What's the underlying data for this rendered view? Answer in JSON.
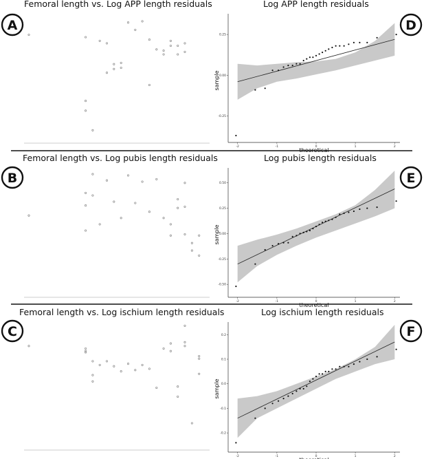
{
  "chart_data": [
    {
      "type": "scatter",
      "panel": "A",
      "title": "Femoral length vs. Log APP length residuals",
      "xlabel": "",
      "ylabel": "",
      "points": [
        [
          0,
          84
        ],
        [
          8,
          82
        ],
        [
          8,
          30
        ],
        [
          8,
          22
        ],
        [
          9,
          6
        ],
        [
          10,
          79
        ],
        [
          11,
          77
        ],
        [
          11,
          53
        ],
        [
          12,
          60
        ],
        [
          12,
          56
        ],
        [
          13,
          61
        ],
        [
          13,
          57
        ],
        [
          14,
          94
        ],
        [
          15,
          88
        ],
        [
          16,
          95
        ],
        [
          17,
          43
        ],
        [
          17,
          80
        ],
        [
          18,
          72
        ],
        [
          19,
          68
        ],
        [
          19,
          71
        ],
        [
          20,
          79
        ],
        [
          20,
          75
        ],
        [
          21,
          75
        ],
        [
          21,
          68
        ],
        [
          22,
          77
        ],
        [
          22,
          70
        ]
      ],
      "ylim": [
        0,
        100
      ]
    },
    {
      "type": "scatter",
      "panel": "B",
      "title": "Femoral length vs. Log pubis length residuals",
      "xlabel": "",
      "ylabel": "",
      "points": [
        [
          0,
          62
        ],
        [
          8,
          80
        ],
        [
          8,
          70
        ],
        [
          8,
          50
        ],
        [
          9,
          95
        ],
        [
          9,
          78
        ],
        [
          10,
          55
        ],
        [
          11,
          90
        ],
        [
          12,
          73
        ],
        [
          13,
          60
        ],
        [
          14,
          94
        ],
        [
          15,
          72
        ],
        [
          16,
          89
        ],
        [
          17,
          65
        ],
        [
          18,
          91
        ],
        [
          19,
          60
        ],
        [
          20,
          46
        ],
        [
          20,
          55
        ],
        [
          21,
          75
        ],
        [
          21,
          68
        ],
        [
          22,
          47
        ],
        [
          22,
          88
        ],
        [
          22,
          69
        ],
        [
          23,
          40
        ],
        [
          23,
          34
        ],
        [
          24,
          30
        ],
        [
          24,
          46
        ]
      ],
      "ylim": [
        0,
        100
      ]
    },
    {
      "type": "scatter",
      "panel": "C",
      "title": "Femoral length vs. Log ischium length residuals",
      "xlabel": "",
      "ylabel": "",
      "points": [
        [
          0,
          80
        ],
        [
          8,
          76
        ],
        [
          8,
          75
        ],
        [
          8,
          78
        ],
        [
          9,
          68
        ],
        [
          9,
          57
        ],
        [
          9,
          52
        ],
        [
          10,
          65
        ],
        [
          11,
          68
        ],
        [
          12,
          64
        ],
        [
          13,
          60
        ],
        [
          14,
          66
        ],
        [
          15,
          61
        ],
        [
          16,
          65
        ],
        [
          17,
          62
        ],
        [
          18,
          47
        ],
        [
          19,
          78
        ],
        [
          20,
          82
        ],
        [
          20,
          76
        ],
        [
          21,
          40
        ],
        [
          21,
          48
        ],
        [
          22,
          80
        ],
        [
          22,
          83
        ],
        [
          22,
          96
        ],
        [
          23,
          19
        ],
        [
          24,
          72
        ],
        [
          24,
          58
        ],
        [
          24,
          70
        ]
      ],
      "ylim": [
        0,
        100
      ]
    },
    {
      "type": "scatter",
      "panel": "D",
      "title": "Log APP length residuals",
      "xlabel": "theoretical",
      "ylabel": "sample",
      "x_ticks": [
        "-2",
        "-1",
        "0",
        "1",
        "2"
      ],
      "y_ticks": [
        "-0.25",
        "0.00",
        "0.25"
      ],
      "xlim": [
        -2.1,
        2.1
      ],
      "ylim": [
        -0.37,
        0.36
      ],
      "fit_line": [
        [
          -2.0,
          -0.04
        ],
        [
          2.0,
          0.22
        ]
      ],
      "ci_band": {
        "x": [
          -2.0,
          -1.5,
          -1.0,
          -0.5,
          0,
          0.5,
          1.0,
          1.5,
          2.0
        ],
        "lower": [
          -0.15,
          -0.08,
          -0.04,
          -0.02,
          0.005,
          0.03,
          0.06,
          0.09,
          0.12
        ],
        "upper": [
          0.07,
          0.06,
          0.07,
          0.08,
          0.085,
          0.1,
          0.14,
          0.21,
          0.32
        ]
      },
      "points": [
        [
          -2.04,
          -0.37
        ],
        [
          -1.55,
          -0.09
        ],
        [
          -1.3,
          -0.08
        ],
        [
          -1.11,
          0.03
        ],
        [
          -0.96,
          0.03
        ],
        [
          -0.83,
          0.05
        ],
        [
          -0.71,
          0.06
        ],
        [
          -0.6,
          0.06
        ],
        [
          -0.5,
          0.07
        ],
        [
          -0.41,
          0.07
        ],
        [
          -0.32,
          0.09
        ],
        [
          -0.24,
          0.1
        ],
        [
          -0.16,
          0.11
        ],
        [
          -0.08,
          0.11
        ],
        [
          0.0,
          0.12
        ],
        [
          0.08,
          0.13
        ],
        [
          0.16,
          0.14
        ],
        [
          0.24,
          0.15
        ],
        [
          0.32,
          0.16
        ],
        [
          0.41,
          0.17
        ],
        [
          0.5,
          0.18
        ],
        [
          0.6,
          0.18
        ],
        [
          0.71,
          0.18
        ],
        [
          0.83,
          0.19
        ],
        [
          0.96,
          0.2
        ],
        [
          1.11,
          0.2
        ],
        [
          1.3,
          0.2
        ],
        [
          1.55,
          0.23
        ],
        [
          2.04,
          0.25
        ]
      ]
    },
    {
      "type": "scatter",
      "panel": "E",
      "title": "Log pubis length residuals",
      "xlabel": "theoretical",
      "ylabel": "sample",
      "x_ticks": [
        "-2",
        "-1",
        "0",
        "1",
        "2"
      ],
      "y_ticks": [
        "-0.50",
        "-0.25",
        "0.00",
        "0.25",
        "0.50"
      ],
      "xlim": [
        -2.1,
        2.1
      ],
      "ylim": [
        -0.56,
        0.62
      ],
      "fit_line": [
        [
          -2.0,
          -0.3
        ],
        [
          2.0,
          0.44
        ]
      ],
      "ci_band": {
        "x": [
          -2.0,
          -1.5,
          -1.0,
          -0.5,
          0,
          0.5,
          1.0,
          1.5,
          2.0
        ],
        "lower": [
          -0.48,
          -0.32,
          -0.21,
          -0.12,
          -0.04,
          0.03,
          0.1,
          0.17,
          0.25
        ],
        "upper": [
          -0.12,
          -0.06,
          -0.01,
          0.05,
          0.12,
          0.19,
          0.28,
          0.43,
          0.62
        ]
      },
      "points": [
        [
          -2.04,
          -0.52
        ],
        [
          -1.55,
          -0.3
        ],
        [
          -1.3,
          -0.16
        ],
        [
          -1.11,
          -0.12
        ],
        [
          -0.96,
          -0.1
        ],
        [
          -0.83,
          -0.09
        ],
        [
          -0.71,
          -0.09
        ],
        [
          -0.6,
          -0.03
        ],
        [
          -0.5,
          -0.02
        ],
        [
          -0.41,
          0.0
        ],
        [
          -0.32,
          0.01
        ],
        [
          -0.24,
          0.02
        ],
        [
          -0.16,
          0.03
        ],
        [
          -0.08,
          0.05
        ],
        [
          0.0,
          0.07
        ],
        [
          0.08,
          0.09
        ],
        [
          0.16,
          0.11
        ],
        [
          0.24,
          0.12
        ],
        [
          0.32,
          0.13
        ],
        [
          0.41,
          0.14
        ],
        [
          0.5,
          0.16
        ],
        [
          0.6,
          0.19
        ],
        [
          0.71,
          0.2
        ],
        [
          0.83,
          0.21
        ],
        [
          0.96,
          0.22
        ],
        [
          1.11,
          0.24
        ],
        [
          1.3,
          0.25
        ],
        [
          1.55,
          0.26
        ],
        [
          2.04,
          0.32
        ]
      ]
    },
    {
      "type": "scatter",
      "panel": "F",
      "title": "Log ischium length residuals",
      "xlabel": "theoretical",
      "ylabel": "sample",
      "x_ticks": [
        "-2",
        "-1",
        "0",
        "1",
        "2"
      ],
      "y_ticks": [
        "-0.2",
        "-0.1",
        "0.0",
        "0.1",
        "0.2"
      ],
      "xlim": [
        -2.1,
        2.1
      ],
      "ylim": [
        -0.25,
        0.24
      ],
      "fit_line": [
        [
          -2.0,
          -0.14
        ],
        [
          2.0,
          0.17
        ]
      ],
      "ci_band": {
        "x": [
          -2.0,
          -1.5,
          -1.0,
          -0.5,
          0,
          0.5,
          1.0,
          1.5,
          2.0
        ],
        "lower": [
          -0.22,
          -0.14,
          -0.1,
          -0.06,
          -0.02,
          0.02,
          0.05,
          0.08,
          0.1
        ],
        "upper": [
          -0.06,
          -0.05,
          -0.03,
          0.0,
          0.03,
          0.06,
          0.1,
          0.15,
          0.24
        ]
      },
      "points": [
        [
          -2.04,
          -0.24
        ],
        [
          -1.55,
          -0.14
        ],
        [
          -1.3,
          -0.1
        ],
        [
          -1.11,
          -0.08
        ],
        [
          -0.96,
          -0.07
        ],
        [
          -0.83,
          -0.06
        ],
        [
          -0.71,
          -0.05
        ],
        [
          -0.6,
          -0.04
        ],
        [
          -0.5,
          -0.03
        ],
        [
          -0.41,
          -0.02
        ],
        [
          -0.32,
          -0.02
        ],
        [
          -0.24,
          -0.01
        ],
        [
          -0.16,
          0.01
        ],
        [
          -0.08,
          0.02
        ],
        [
          0.0,
          0.03
        ],
        [
          0.08,
          0.04
        ],
        [
          0.16,
          0.04
        ],
        [
          0.24,
          0.05
        ],
        [
          0.32,
          0.05
        ],
        [
          0.41,
          0.06
        ],
        [
          0.5,
          0.06
        ],
        [
          0.6,
          0.07
        ],
        [
          0.71,
          0.07
        ],
        [
          0.83,
          0.07
        ],
        [
          0.96,
          0.08
        ],
        [
          1.11,
          0.09
        ],
        [
          1.3,
          0.1
        ],
        [
          1.55,
          0.11
        ],
        [
          2.04,
          0.14
        ]
      ]
    }
  ],
  "badges": [
    "A",
    "B",
    "C",
    "D",
    "E",
    "F"
  ],
  "colors": {
    "band": "#c9c9c9",
    "point_left": "#888888",
    "point_right": "#111111",
    "line": "#222222"
  }
}
